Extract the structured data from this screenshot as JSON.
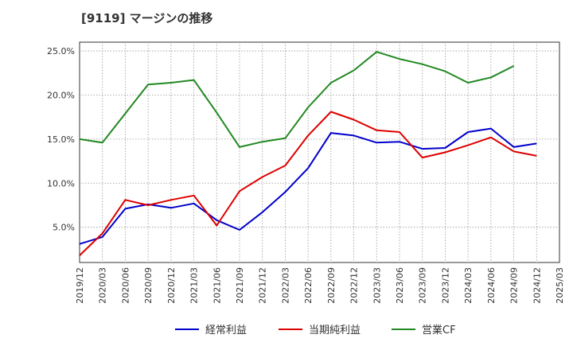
{
  "title": "[9119]  マージンの推移",
  "chart_data": {
    "type": "line",
    "title": "[9119]  マージンの推移",
    "x": [
      "2019/12",
      "2020/03",
      "2020/06",
      "2020/09",
      "2020/12",
      "2021/03",
      "2021/06",
      "2021/09",
      "2021/12",
      "2022/03",
      "2022/06",
      "2022/09",
      "2022/12",
      "2023/03",
      "2023/06",
      "2023/09",
      "2023/12",
      "2024/03",
      "2024/06",
      "2024/09",
      "2024/12",
      "2025/03"
    ],
    "ylim": [
      1.0,
      26.0
    ],
    "yticks": [
      5.0,
      10.0,
      15.0,
      20.0,
      25.0
    ],
    "ytick_labels": [
      "5.0%",
      "10.0%",
      "15.0%",
      "20.0%",
      "25.0%"
    ],
    "grid": true,
    "legend_position": "bottom",
    "series": [
      {
        "name": "経常利益",
        "color": "#0000cc",
        "values": [
          3.1,
          3.9,
          7.1,
          7.6,
          7.2,
          7.7,
          5.8,
          4.7,
          6.7,
          9.0,
          11.7,
          15.7,
          15.4,
          14.6,
          14.7,
          13.9,
          14.0,
          15.8,
          16.2,
          14.1,
          14.5,
          null
        ]
      },
      {
        "name": "当期純利益",
        "color": "#dd0000",
        "values": [
          1.8,
          4.3,
          8.1,
          7.5,
          8.1,
          8.6,
          5.2,
          9.1,
          10.7,
          12.0,
          15.4,
          18.1,
          17.2,
          16.0,
          15.8,
          12.9,
          13.5,
          14.3,
          15.2,
          13.6,
          13.1,
          null
        ]
      },
      {
        "name": "営業CF",
        "color": "#228822",
        "values": [
          15.0,
          14.6,
          17.9,
          21.2,
          21.4,
          21.7,
          18.0,
          14.1,
          14.7,
          15.1,
          18.6,
          21.4,
          22.8,
          24.9,
          24.1,
          23.5,
          22.7,
          21.4,
          22.0,
          23.3,
          null,
          null
        ]
      }
    ]
  }
}
